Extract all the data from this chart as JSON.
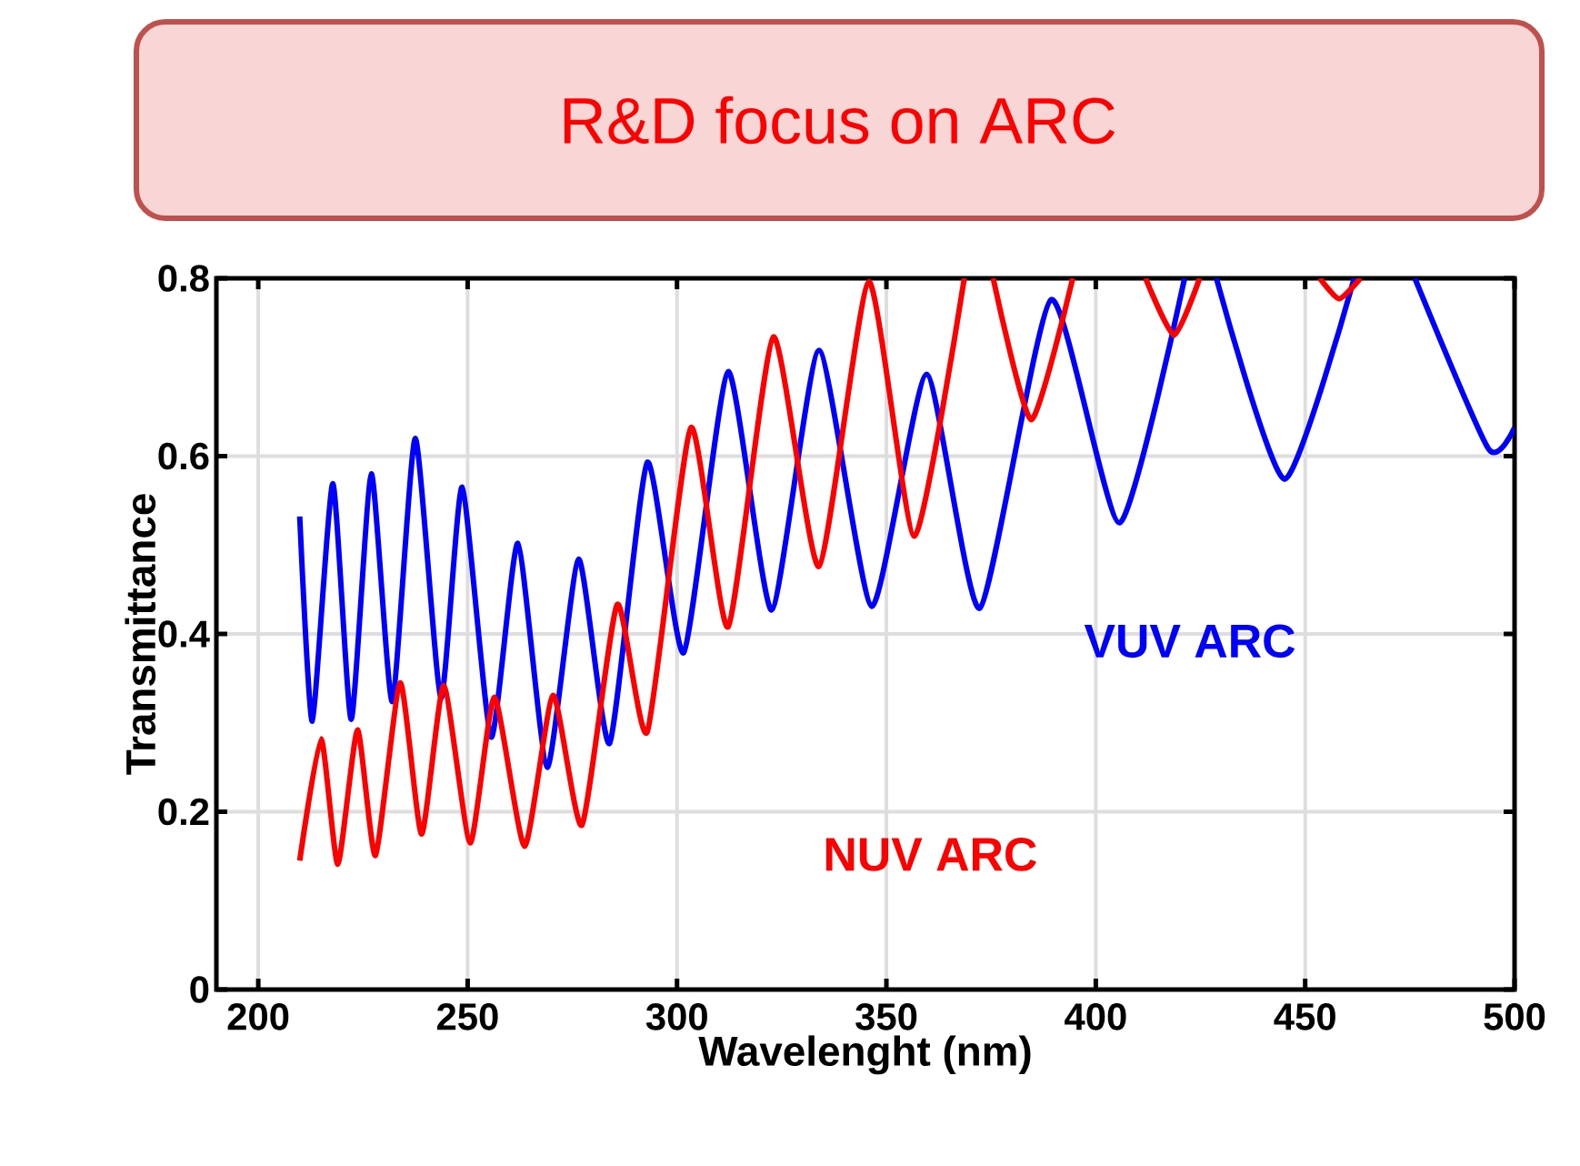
{
  "chart_data": {
    "type": "line",
    "title": "R&D focus on ARC",
    "xlabel": "Wavelenght (nm)",
    "ylabel": "Transmittance",
    "xlim": [
      190,
      500
    ],
    "ylim": [
      0,
      0.8
    ],
    "xticks": [
      200,
      250,
      300,
      350,
      400,
      450,
      500
    ],
    "yticks": [
      0,
      0.2,
      0.4,
      0.6,
      0.8
    ],
    "grid": true,
    "series": [
      {
        "name": "VUV ARC",
        "color": "#0000ff",
        "x": [
          209.9,
          212.9,
          217.8,
          222.2,
          227,
          232,
          237.5,
          243.6,
          248.7,
          255.6,
          262,
          269,
          276.5,
          283.9,
          292.9,
          301.6,
          312.2,
          322.6,
          333.9,
          346.5,
          359.6,
          372.3,
          389.3,
          405.7,
          421.2,
          425,
          428.8,
          445.1,
          461.7,
          469,
          476.2,
          493.8,
          500
        ],
        "values": [
          0.532,
          0.302,
          0.569,
          0.304,
          0.58,
          0.324,
          0.62,
          0.328,
          0.565,
          0.284,
          0.502,
          0.25,
          0.484,
          0.277,
          0.593,
          0.379,
          0.695,
          0.427,
          0.719,
          0.431,
          0.692,
          0.429,
          0.776,
          0.525,
          0.8,
          null,
          0.8,
          0.574,
          0.8,
          null,
          0.8,
          0.608,
          0.632
        ]
      },
      {
        "name": "NUV ARC",
        "color": "#ff0000",
        "x": [
          209.9,
          215,
          219,
          223.7,
          228,
          233.9,
          239,
          244.3,
          250.6,
          256.4,
          263.6,
          270.4,
          277.3,
          285.7,
          292.9,
          303.3,
          312.2,
          323,
          333.9,
          345.8,
          356.7,
          368.6,
          372,
          375.5,
          384.6,
          394.5,
          403,
          411.9,
          418.7,
          424.8,
          440,
          453.5,
          458.1,
          463.2
        ],
        "values": [
          0.145,
          0.282,
          0.141,
          0.292,
          0.151,
          0.345,
          0.175,
          0.342,
          0.165,
          0.329,
          0.161,
          0.331,
          0.185,
          0.433,
          0.29,
          0.632,
          0.408,
          0.734,
          0.476,
          0.796,
          0.51,
          0.8,
          null,
          0.8,
          0.641,
          0.8,
          null,
          0.8,
          0.736,
          0.8,
          null,
          0.8,
          0.777,
          0.8
        ]
      }
    ]
  }
}
